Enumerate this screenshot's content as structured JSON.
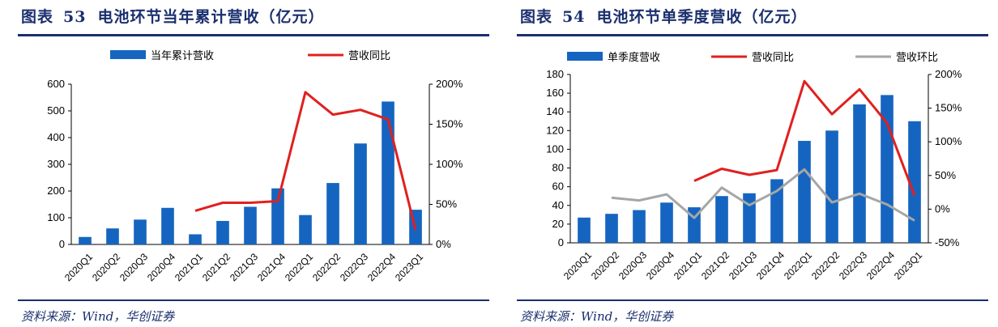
{
  "colors": {
    "bar": "#1565c0",
    "line_red": "#e02020",
    "line_gray": "#a6a6a6",
    "title": "#1a2f6e"
  },
  "left": {
    "title_prefix": "图表",
    "title_num": "53",
    "title_text": "电池环节当年累计营收（亿元）",
    "source": "资料来源：Wind，华创证券"
  },
  "right": {
    "title_prefix": "图表",
    "title_num": "54",
    "title_text": "电池环节单季度营收（亿元）",
    "source": "资料来源：Wind，华创证券"
  },
  "chart_data": [
    {
      "type": "bar",
      "categories": [
        "2020Q1",
        "2020Q2",
        "2020Q3",
        "2020Q4",
        "2021Q1",
        "2021Q2",
        "2021Q3",
        "2021Q4",
        "2022Q1",
        "2022Q2",
        "2022Q3",
        "2022Q4",
        "2023Q1"
      ],
      "series": [
        {
          "name": "当年累计营收",
          "kind": "bar",
          "axis": "left",
          "values": [
            28,
            60,
            93,
            137,
            38,
            88,
            141,
            210,
            110,
            230,
            378,
            535,
            130
          ]
        },
        {
          "name": "营收同比",
          "kind": "line",
          "axis": "right",
          "values": [
            null,
            null,
            null,
            null,
            42,
            52,
            52,
            54,
            190,
            162,
            168,
            156,
            18
          ]
        }
      ],
      "ylim": [
        0,
        600
      ],
      "yticks": [
        "0",
        "100",
        "200",
        "300",
        "400",
        "500",
        "600"
      ],
      "y2lim": [
        0,
        200
      ],
      "y2ticks": [
        "0%",
        "50%",
        "100%",
        "150%",
        "200%"
      ],
      "legend": "top-center"
    },
    {
      "type": "bar",
      "categories": [
        "2020Q1",
        "2020Q2",
        "2020Q3",
        "2020Q4",
        "2021Q1",
        "2021Q2",
        "2021Q3",
        "2021Q4",
        "2022Q1",
        "2022Q2",
        "2022Q3",
        "2022Q4",
        "2023Q1"
      ],
      "series": [
        {
          "name": "单季度营收",
          "kind": "bar",
          "axis": "left",
          "values": [
            27,
            31,
            35,
            43,
            38,
            50,
            53,
            68,
            109,
            120,
            148,
            158,
            130
          ]
        },
        {
          "name": "营收同比",
          "kind": "line",
          "axis": "right",
          "values": [
            null,
            null,
            null,
            null,
            42,
            60,
            51,
            58,
            190,
            141,
            178,
            128,
            20
          ]
        },
        {
          "name": "营收环比",
          "kind": "line",
          "axis": "right",
          "values": [
            null,
            17,
            13,
            22,
            -13,
            32,
            6,
            27,
            59,
            10,
            23,
            7,
            -17
          ]
        }
      ],
      "ylim": [
        0,
        180
      ],
      "yticks": [
        "0",
        "20",
        "40",
        "60",
        "80",
        "100",
        "120",
        "140",
        "160",
        "180"
      ],
      "y2lim": [
        -50,
        200
      ],
      "y2ticks": [
        "-50%",
        "0%",
        "50%",
        "100%",
        "150%",
        "200%"
      ],
      "legend": "top-center"
    }
  ]
}
